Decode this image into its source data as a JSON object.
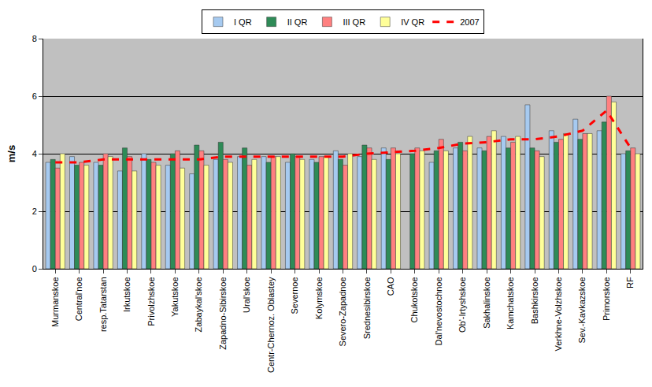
{
  "chart_data": {
    "type": "bar",
    "y_label": "m/s",
    "categories": [
      "Murmanskoe",
      "Central'noe",
      "resp.Tatarstan",
      "Irkutskoe",
      "Privolzhskoe",
      "Yakutskoe",
      "Zabaykal'skoe",
      "Zapadno-Sibirskoe",
      "Ural'skoe",
      "Centr-Chernoz. Oblastey",
      "Severnoe",
      "Kolymskoe",
      "Severo-Zapadnoe",
      "Srednesibirskoe",
      "CAO",
      "Chukotskoe",
      "Dal'nevostochnoe",
      "Ob'-Irtyshskoe",
      "Sakhalinskoe",
      "Kamchatskoe",
      "Bashkirskoe",
      "Verkhne-Volzhskoe",
      "Sev.-Kavkazskoe",
      "Primorskoe",
      "RF"
    ],
    "series": [
      {
        "name": "I QR",
        "type": "bar",
        "color": "#a6caf0",
        "values": [
          3.7,
          3.9,
          3.7,
          3.4,
          4.0,
          3.6,
          3.3,
          3.8,
          3.9,
          3.9,
          3.7,
          3.8,
          4.1,
          3.9,
          4.2,
          null,
          3.7,
          4.2,
          4.2,
          4.6,
          5.7,
          4.8,
          5.2,
          4.8,
          4.0
        ]
      },
      {
        "name": "II QR",
        "type": "bar",
        "color": "#2e8b57",
        "values": [
          3.8,
          3.6,
          3.6,
          4.2,
          3.8,
          4.0,
          4.3,
          4.4,
          4.2,
          3.7,
          4.0,
          3.7,
          3.8,
          4.3,
          3.8,
          4.0,
          4.1,
          4.4,
          4.1,
          4.2,
          4.2,
          4.4,
          4.5,
          5.1,
          4.1
        ]
      },
      {
        "name": "III QR",
        "type": "bar",
        "color": "#ff8080",
        "values": [
          3.5,
          3.7,
          4.0,
          3.9,
          3.7,
          4.1,
          4.1,
          3.8,
          3.6,
          3.9,
          3.9,
          3.9,
          3.6,
          4.2,
          4.2,
          4.2,
          4.5,
          4.1,
          4.6,
          4.4,
          4.1,
          4.5,
          4.7,
          6.0,
          4.2
        ]
      },
      {
        "name": "IV QR",
        "type": "bar",
        "color": "#ffff99",
        "values": [
          4.0,
          3.6,
          3.9,
          3.4,
          3.6,
          3.5,
          3.6,
          3.7,
          3.8,
          3.9,
          3.8,
          3.9,
          4.0,
          3.8,
          4.0,
          4.1,
          4.1,
          4.6,
          4.8,
          4.6,
          3.9,
          4.7,
          4.7,
          5.8,
          4.0
        ]
      },
      {
        "name": "2007",
        "type": "line",
        "color": "#ff0000",
        "line_style": "dashed",
        "values": [
          3.7,
          3.7,
          3.8,
          3.8,
          3.8,
          3.8,
          3.8,
          3.9,
          3.9,
          3.9,
          3.9,
          3.9,
          3.9,
          4.0,
          4.05,
          4.1,
          4.2,
          4.35,
          4.4,
          4.5,
          4.5,
          4.6,
          4.8,
          5.5,
          4.2
        ]
      }
    ],
    "ylim": [
      0,
      8
    ],
    "yticks": [
      0,
      2,
      4,
      6,
      8
    ],
    "grid": true,
    "legend": "top"
  }
}
